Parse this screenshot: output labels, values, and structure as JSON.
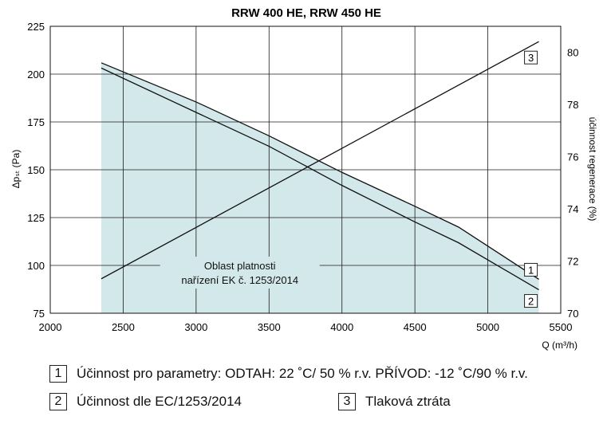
{
  "chart_data": {
    "type": "line",
    "title": "RRW 400 HE, RRW 450 HE",
    "xlabel": "Q (m³/h)",
    "ylabel_left": "Δpₛₜ (Pa)",
    "ylabel_right": "účinnost regenerace (%)",
    "xlim": [
      2000,
      5500
    ],
    "ylim_left": [
      75,
      225
    ],
    "ylim_right": [
      70,
      81
    ],
    "x_ticks": [
      2000,
      2500,
      3000,
      3500,
      4000,
      4500,
      5000,
      5500
    ],
    "y_left_ticks": [
      75,
      100,
      125,
      150,
      175,
      200,
      225
    ],
    "y_right_ticks": [
      70,
      72,
      74,
      76,
      78,
      80
    ],
    "grid": true,
    "area": {
      "label_lines": [
        "Oblast platnosti",
        "nařízení EK č. 1253/2014"
      ],
      "x_range": [
        2350,
        5350
      ],
      "fill_color": "#d3e8ea"
    },
    "series": [
      {
        "marker": "1",
        "axis": "right",
        "x": [
          2350,
          3000,
          3500,
          4000,
          4500,
          4800,
          5350
        ],
        "y": [
          79.6,
          78.1,
          76.8,
          75.4,
          74.1,
          73.3,
          71.3
        ]
      },
      {
        "marker": "2",
        "axis": "right",
        "x": [
          2350,
          3000,
          3500,
          4000,
          4500,
          4800,
          5350
        ],
        "y": [
          79.4,
          77.7,
          76.4,
          74.9,
          73.5,
          72.7,
          70.9
        ]
      },
      {
        "marker": "3",
        "axis": "left",
        "x": [
          2350,
          5350
        ],
        "y": [
          93,
          217
        ]
      }
    ]
  },
  "legend": [
    {
      "marker": "1",
      "text": "Účinnost pro parametry: ODTAH: 22 ˚C/ 50 % r.v. PŘÍVOD: -12 ˚C/90 % r.v."
    },
    {
      "marker": "2",
      "text": "Účinnost dle EC/1253/2014"
    },
    {
      "marker": "3",
      "text": "Tlaková ztráta"
    }
  ]
}
